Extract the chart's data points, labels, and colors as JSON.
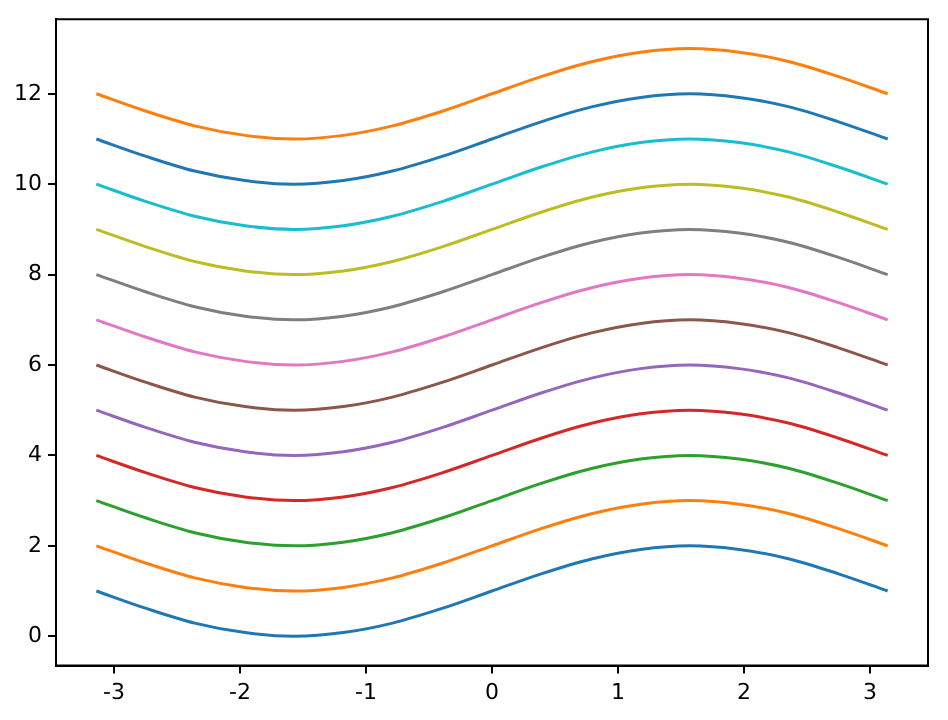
{
  "chart_data": {
    "type": "line",
    "x": [
      -3.14,
      -2.75,
      -2.36,
      -1.96,
      -1.57,
      -1.18,
      -0.79,
      -0.39,
      0,
      0.39,
      0.79,
      1.18,
      1.57,
      1.96,
      2.36,
      2.75,
      3.14
    ],
    "xlim": [
      -3.46,
      3.46
    ],
    "xticks": [
      -3,
      -2,
      -1,
      0,
      1,
      2,
      3
    ],
    "ylim": [
      -0.65,
      13.65
    ],
    "yticks": [
      0,
      2,
      4,
      6,
      8,
      10,
      12
    ],
    "grid": false,
    "legend": false,
    "marker": "none",
    "line_style": "solid",
    "series": [
      {
        "color": "#1f77b4",
        "values": [
          1,
          0.62,
          0.29,
          0.08,
          0,
          0.08,
          0.29,
          0.62,
          1,
          1.38,
          1.71,
          1.92,
          2,
          1.92,
          1.71,
          1.38,
          1
        ]
      },
      {
        "color": "#ff7f0e",
        "values": [
          2,
          1.62,
          1.29,
          1.08,
          1,
          1.08,
          1.29,
          1.62,
          2,
          2.38,
          2.71,
          2.92,
          3,
          2.92,
          2.71,
          2.38,
          2
        ]
      },
      {
        "color": "#2ca02c",
        "values": [
          3,
          2.62,
          2.29,
          2.08,
          2,
          2.08,
          2.29,
          2.62,
          3,
          3.38,
          3.71,
          3.92,
          4,
          3.92,
          3.71,
          3.38,
          3
        ]
      },
      {
        "color": "#d62728",
        "values": [
          4,
          3.62,
          3.29,
          3.08,
          3,
          3.08,
          3.29,
          3.62,
          4,
          4.38,
          4.71,
          4.92,
          5,
          4.92,
          4.71,
          4.38,
          4
        ]
      },
      {
        "color": "#9467bd",
        "values": [
          5,
          4.62,
          4.29,
          4.08,
          4,
          4.08,
          4.29,
          4.62,
          5,
          5.38,
          5.71,
          5.92,
          6,
          5.92,
          5.71,
          5.38,
          5
        ]
      },
      {
        "color": "#8c564b",
        "values": [
          6,
          5.62,
          5.29,
          5.08,
          5,
          5.08,
          5.29,
          5.62,
          6,
          6.38,
          6.71,
          6.92,
          7,
          6.92,
          6.71,
          6.38,
          6
        ]
      },
      {
        "color": "#e377c2",
        "values": [
          7,
          6.62,
          6.29,
          6.08,
          6,
          6.08,
          6.29,
          6.62,
          7,
          7.38,
          7.71,
          7.92,
          8,
          7.92,
          7.71,
          7.38,
          7
        ]
      },
      {
        "color": "#7f7f7f",
        "values": [
          8,
          7.62,
          7.29,
          7.08,
          7,
          7.08,
          7.29,
          7.62,
          8,
          8.38,
          8.71,
          8.92,
          9,
          8.92,
          8.71,
          8.38,
          8
        ]
      },
      {
        "color": "#bcbd22",
        "values": [
          9,
          8.62,
          8.29,
          8.08,
          8,
          8.08,
          8.29,
          8.62,
          9,
          9.38,
          9.71,
          9.92,
          10,
          9.92,
          9.71,
          9.38,
          9
        ]
      },
      {
        "color": "#17becf",
        "values": [
          10,
          9.62,
          9.29,
          9.08,
          9,
          9.08,
          9.29,
          9.62,
          10,
          10.38,
          10.71,
          10.92,
          11,
          10.92,
          10.71,
          10.38,
          10
        ]
      },
      {
        "color": "#1f77b4",
        "values": [
          11,
          10.62,
          10.29,
          10.08,
          10,
          10.08,
          10.29,
          10.62,
          11,
          11.38,
          11.71,
          11.92,
          12,
          11.92,
          11.71,
          11.38,
          11
        ]
      },
      {
        "color": "#ff7f0e",
        "values": [
          12,
          11.62,
          11.29,
          11.08,
          11,
          11.08,
          11.29,
          11.62,
          12,
          12.38,
          12.71,
          12.92,
          13,
          12.92,
          12.71,
          12.38,
          12
        ]
      }
    ]
  }
}
